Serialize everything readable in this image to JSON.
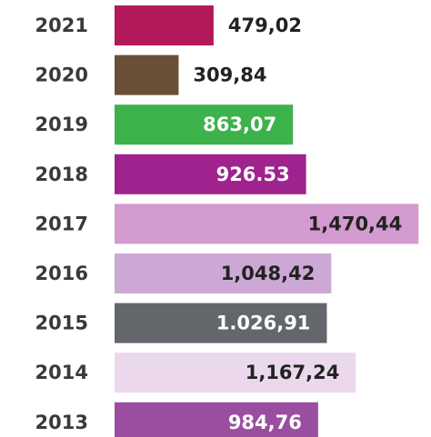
{
  "chart_data": {
    "type": "bar",
    "orientation": "horizontal",
    "categories": [
      "2021",
      "2020",
      "2019",
      "2018",
      "2017",
      "2016",
      "2015",
      "2014",
      "2013"
    ],
    "values": [
      479.02,
      309.84,
      863.07,
      926.53,
      1470.44,
      1048.42,
      1026.91,
      1167.24,
      984.76
    ],
    "value_labels": [
      "479,02",
      "309,84",
      "863,07",
      "926.53",
      "1,470,44",
      "1,048,42",
      "1.026,91",
      "1,167,24",
      "984,76"
    ],
    "colors": [
      "#b3185a",
      "#6a4f37",
      "#3db24b",
      "#a0228f",
      "#d39bd0",
      "#cca8d4",
      "#63676b",
      "#ecd8ec",
      "#9a4e9f"
    ],
    "xlim": [
      0,
      1500
    ]
  }
}
